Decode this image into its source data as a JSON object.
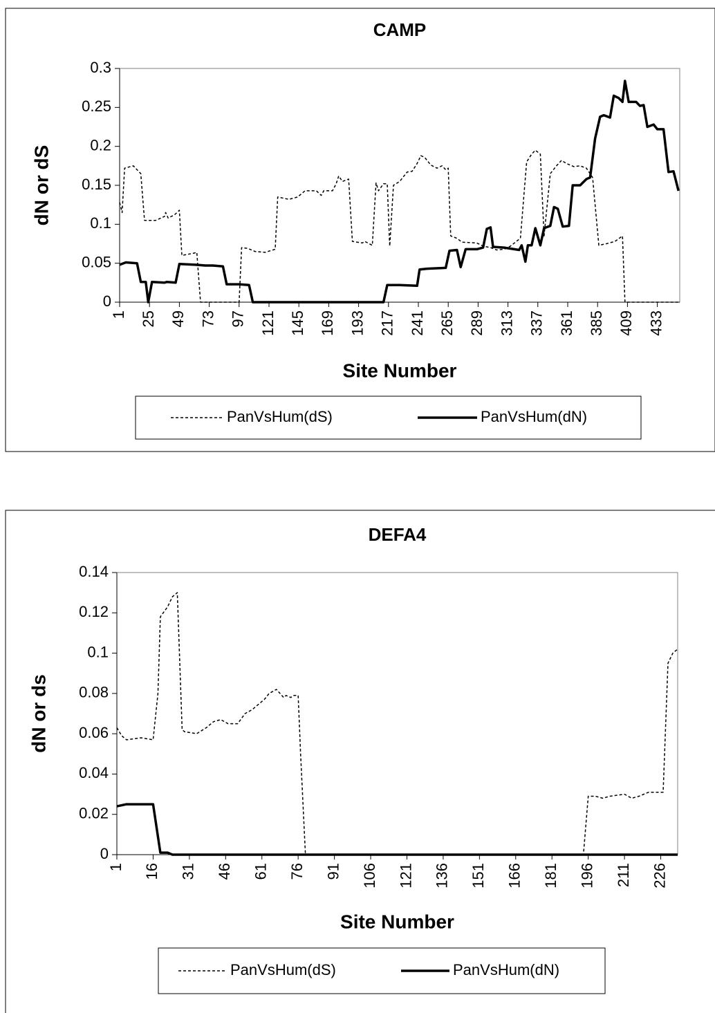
{
  "chart_data": [
    {
      "type": "line",
      "title": "CAMP",
      "x_label": "Site Number",
      "y_label": "dN or dS",
      "xlim": [
        1,
        451
      ],
      "xticks": [
        1,
        25,
        49,
        73,
        97,
        121,
        145,
        169,
        193,
        217,
        241,
        265,
        289,
        313,
        337,
        361,
        385,
        409,
        433
      ],
      "ylim": [
        0,
        0.3
      ],
      "yticks": [
        0,
        0.05,
        0.1,
        0.15,
        0.2,
        0.25,
        0.3
      ],
      "grid": false,
      "legend": "bottom",
      "series": [
        {
          "name": "PanVsHum(dS)",
          "color": "#000000",
          "line_style": "dashed",
          "x": [
            1,
            3,
            5,
            12,
            18,
            21,
            30,
            37,
            38,
            40,
            45,
            49,
            51,
            61,
            63,
            66,
            97,
            99,
            104,
            110,
            118,
            126,
            128,
            137,
            144,
            150,
            159,
            163,
            165,
            172,
            175,
            177,
            180,
            185,
            188,
            196,
            198,
            204,
            207,
            209,
            213,
            216,
            218,
            221,
            226,
            232,
            236,
            240,
            243,
            246,
            251,
            256,
            260,
            263,
            265,
            267,
            272,
            276,
            288,
            293,
            299,
            304,
            310,
            315,
            319,
            323,
            328,
            332,
            335,
            339,
            342,
            347,
            352,
            356,
            360,
            366,
            371,
            376,
            381,
            386,
            392,
            399,
            405,
            407,
            451
          ],
          "values": [
            0.128,
            0.115,
            0.172,
            0.175,
            0.165,
            0.105,
            0.105,
            0.11,
            0.115,
            0.108,
            0.112,
            0.118,
            0.06,
            0.063,
            0.064,
            0,
            0,
            0.07,
            0.069,
            0.065,
            0.064,
            0.068,
            0.135,
            0.132,
            0.135,
            0.143,
            0.143,
            0.137,
            0.143,
            0.143,
            0.152,
            0.162,
            0.155,
            0.158,
            0.078,
            0.076,
            0.078,
            0.073,
            0.153,
            0.143,
            0.152,
            0.152,
            0.072,
            0.15,
            0.155,
            0.167,
            0.168,
            0.178,
            0.188,
            0.186,
            0.176,
            0.172,
            0.175,
            0.17,
            0.172,
            0.085,
            0.082,
            0.077,
            0.076,
            0.072,
            0.07,
            0.067,
            0.068,
            0.072,
            0.077,
            0.082,
            0.18,
            0.19,
            0.195,
            0.19,
            0.085,
            0.165,
            0.175,
            0.182,
            0.178,
            0.174,
            0.175,
            0.172,
            0.16,
            0.073,
            0.075,
            0.078,
            0.085,
            0,
            0
          ]
        },
        {
          "name": "PanVsHum(dN)",
          "color": "#000000",
          "line_style": "solid",
          "x": [
            1,
            6,
            15,
            18,
            22,
            24,
            27,
            37,
            39,
            46,
            49,
            62,
            70,
            76,
            84,
            87,
            97,
            105,
            108,
            213,
            216,
            226,
            240,
            242,
            248,
            263,
            266,
            272,
            275,
            279,
            288,
            293,
            296,
            299,
            301,
            310,
            318,
            322,
            324,
            327,
            329,
            332,
            335,
            339,
            342,
            347,
            350,
            353,
            357,
            362,
            365,
            371,
            376,
            379,
            383,
            387,
            390,
            395,
            398,
            402,
            405,
            407,
            410,
            416,
            419,
            422,
            425,
            430,
            433,
            438,
            442,
            446,
            450
          ],
          "values": [
            0.048,
            0.051,
            0.05,
            0.026,
            0.026,
            0,
            0.026,
            0.025,
            0.026,
            0.025,
            0.049,
            0.048,
            0.047,
            0.047,
            0.046,
            0.023,
            0.023,
            0.022,
            0,
            0,
            0.022,
            0.022,
            0.021,
            0.042,
            0.043,
            0.044,
            0.066,
            0.067,
            0.045,
            0.068,
            0.068,
            0.07,
            0.094,
            0.096,
            0.071,
            0.07,
            0.068,
            0.067,
            0.073,
            0.052,
            0.073,
            0.073,
            0.095,
            0.073,
            0.095,
            0.098,
            0.122,
            0.12,
            0.097,
            0.098,
            0.15,
            0.15,
            0.158,
            0.16,
            0.21,
            0.238,
            0.24,
            0.237,
            0.265,
            0.262,
            0.257,
            0.284,
            0.257,
            0.257,
            0.252,
            0.253,
            0.225,
            0.228,
            0.222,
            0.222,
            0.167,
            0.168,
            0.143
          ]
        }
      ]
    },
    {
      "type": "line",
      "title": "DEFA4",
      "x_label": "Site Number",
      "y_label": "dN or ds",
      "xlim": [
        1,
        233
      ],
      "xticks": [
        1,
        16,
        31,
        46,
        61,
        76,
        91,
        106,
        121,
        136,
        151,
        166,
        181,
        196,
        211,
        226
      ],
      "ylim": [
        0,
        0.14
      ],
      "yticks": [
        0,
        0.02,
        0.04,
        0.06,
        0.08,
        0.1,
        0.12,
        0.14
      ],
      "grid": false,
      "legend": "bottom",
      "series": [
        {
          "name": "PanVsHum(dS)",
          "color": "#000000",
          "line_style": "dashed",
          "x": [
            1,
            3,
            5,
            11,
            16,
            18,
            19,
            22,
            24,
            26,
            28,
            29,
            34,
            38,
            41,
            44,
            47,
            51,
            54,
            57,
            60,
            62,
            64,
            67,
            70,
            71,
            73,
            74,
            76,
            77,
            79,
            194,
            196,
            199,
            202,
            205,
            211,
            214,
            217,
            221,
            227,
            229,
            231,
            233
          ],
          "values": [
            0.063,
            0.059,
            0.057,
            0.058,
            0.057,
            0.08,
            0.118,
            0.123,
            0.128,
            0.13,
            0.062,
            0.061,
            0.06,
            0.063,
            0.066,
            0.067,
            0.065,
            0.065,
            0.07,
            0.072,
            0.075,
            0.077,
            0.08,
            0.082,
            0.078,
            0.079,
            0.078,
            0.079,
            0.079,
            0.05,
            0,
            0,
            0.029,
            0.029,
            0.028,
            0.029,
            0.03,
            0.028,
            0.029,
            0.031,
            0.031,
            0.095,
            0.1,
            0.102
          ]
        },
        {
          "name": "PanVsHum(dN)",
          "color": "#000000",
          "line_style": "solid",
          "x": [
            1,
            5,
            16,
            19,
            22,
            24,
            233
          ],
          "values": [
            0.024,
            0.025,
            0.025,
            0.001,
            0.001,
            0,
            0
          ]
        }
      ]
    }
  ]
}
